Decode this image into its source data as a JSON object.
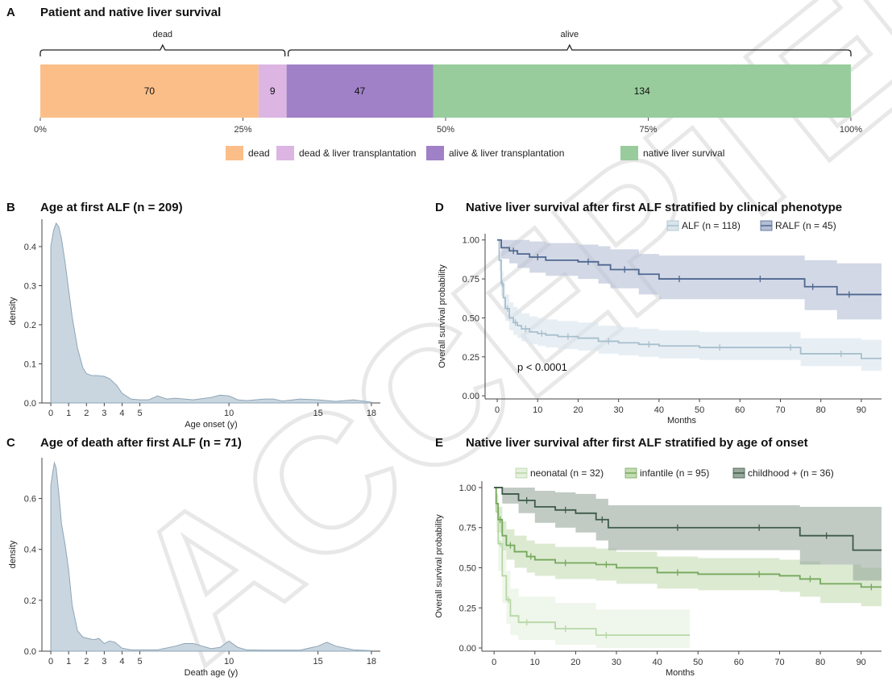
{
  "watermark": "ACCEPTED",
  "panels": [
    {
      "id": "panel-a",
      "letter": "A",
      "title": "Patient and native liver survival"
    },
    {
      "id": "panel-b",
      "letter": "B",
      "title": "Age at first ALF (n = 209)"
    },
    {
      "id": "panel-c",
      "letter": "C",
      "title": "Age of death after first ALF (n = 71)"
    },
    {
      "id": "panel-d",
      "letter": "D",
      "title": "Native liver survival after first ALF stratified by clinical phenotype"
    },
    {
      "id": "panel-e",
      "letter": "E",
      "title": "Native liver survival after first ALF stratified by age of onset"
    }
  ],
  "chart_data": [
    {
      "panel": "A",
      "type": "bar",
      "orientation": "horizontal-stacked-percent",
      "title": "Patient and native liver survival",
      "segments": [
        {
          "name": "dead",
          "value": 70,
          "color": "#fbbe89"
        },
        {
          "name": "dead & liver transplantation",
          "value": 9,
          "color": "#dcb5e3"
        },
        {
          "name": "alive & liver transplantation",
          "value": 47,
          "color": "#a080c6"
        },
        {
          "name": "native liver survival",
          "value": 134,
          "color": "#98cc9c"
        }
      ],
      "brackets": [
        {
          "label": "dead",
          "from": 0,
          "to": 79
        },
        {
          "label": "alive",
          "from": 79,
          "to": 260
        }
      ],
      "ticks": [
        "0%",
        "25%",
        "50%",
        "75%",
        "100%"
      ],
      "tick_values": [
        0,
        25,
        50,
        75,
        100
      ],
      "legend": "bottom"
    },
    {
      "panel": "B",
      "type": "area",
      "title": "Age at first ALF (n = 209)",
      "xlabel": "Age onset (y)",
      "ylabel": "density",
      "xlim": [
        -0.5,
        18.5
      ],
      "ylim": [
        0,
        0.47
      ],
      "x_ticks": [
        0,
        1,
        2,
        3,
        4,
        5,
        10,
        15,
        18
      ],
      "x_tick_labels": [
        "0",
        "1",
        "2",
        "3",
        "4",
        "5",
        "10",
        "15",
        "18"
      ],
      "y_ticks": [
        0,
        0.1,
        0.2,
        0.3,
        0.4
      ],
      "y_tick_labels": [
        "0.0",
        "0.1",
        "0.2",
        "0.3",
        "0.4"
      ],
      "color": "#c9d6e0",
      "line_color": "#8fa5b6",
      "x": [
        0,
        0.15,
        0.3,
        0.45,
        0.6,
        0.8,
        1.0,
        1.2,
        1.5,
        1.8,
        2.0,
        2.3,
        2.6,
        3.0,
        3.3,
        3.7,
        4.0,
        4.5,
        5,
        5.5,
        6,
        6.5,
        7,
        8,
        9,
        9.5,
        10,
        10.5,
        11,
        12,
        12.5,
        13,
        14,
        15,
        16,
        17,
        17.5,
        18
      ],
      "y": [
        0.4,
        0.44,
        0.46,
        0.45,
        0.42,
        0.36,
        0.29,
        0.22,
        0.14,
        0.09,
        0.075,
        0.07,
        0.07,
        0.068,
        0.062,
        0.045,
        0.025,
        0.01,
        0.008,
        0.008,
        0.018,
        0.01,
        0.012,
        0.008,
        0.014,
        0.02,
        0.018,
        0.008,
        0.006,
        0.01,
        0.01,
        0.005,
        0.01,
        0.008,
        0.004,
        0.008,
        0.005,
        0.002
      ]
    },
    {
      "panel": "C",
      "type": "area",
      "title": "Age of death after first ALF (n = 71)",
      "xlabel": "Death age (y)",
      "ylabel": "density",
      "xlim": [
        -0.5,
        18.5
      ],
      "ylim": [
        0,
        0.76
      ],
      "x_ticks": [
        0,
        1,
        2,
        3,
        4,
        5,
        10,
        15,
        18
      ],
      "x_tick_labels": [
        "0",
        "1",
        "2",
        "3",
        "4",
        "5",
        "10",
        "15",
        "18"
      ],
      "y_ticks": [
        0,
        0.2,
        0.4,
        0.6
      ],
      "y_tick_labels": [
        "0.0",
        "0.2",
        "0.4",
        "0.6"
      ],
      "color": "#c9d6e0",
      "line_color": "#8fa5b6",
      "x": [
        0,
        0.1,
        0.2,
        0.3,
        0.45,
        0.6,
        0.8,
        1.0,
        1.2,
        1.5,
        1.8,
        2.1,
        2.4,
        2.7,
        3.0,
        3.3,
        3.6,
        4.0,
        4.5,
        5,
        6,
        7,
        7.5,
        8,
        8.5,
        9,
        9.5,
        10,
        10.5,
        11,
        12,
        13,
        14,
        15,
        15.5,
        16,
        17,
        18
      ],
      "y": [
        0.65,
        0.7,
        0.74,
        0.72,
        0.62,
        0.5,
        0.42,
        0.32,
        0.18,
        0.08,
        0.055,
        0.05,
        0.045,
        0.05,
        0.03,
        0.04,
        0.035,
        0.012,
        0.005,
        0.005,
        0.005,
        0.02,
        0.03,
        0.03,
        0.02,
        0.01,
        0.015,
        0.04,
        0.015,
        0.005,
        0.004,
        0.004,
        0.004,
        0.02,
        0.035,
        0.02,
        0.005,
        0.002
      ]
    },
    {
      "panel": "D",
      "type": "line",
      "subtype": "kaplan-meier",
      "title": "Native liver survival after first ALF stratified by clinical phenotype",
      "xlabel": "Months",
      "ylabel": "Overall survival probability",
      "xlim": [
        -3,
        95
      ],
      "ylim": [
        -0.02,
        1.04
      ],
      "x_ticks": [
        0,
        10,
        20,
        30,
        40,
        50,
        60,
        70,
        80,
        90
      ],
      "y_ticks": [
        0,
        0.25,
        0.5,
        0.75,
        1.0
      ],
      "y_tick_labels": [
        "0.00",
        "0.25",
        "0.50",
        "0.75",
        "1.00"
      ],
      "annotation": "p < 0.0001",
      "legend": "top-right",
      "series": [
        {
          "name": "ALF (n = 118)",
          "color": "#a7bfcd",
          "band": "#d9e5ec",
          "x": [
            0,
            0.5,
            1,
            1.5,
            2,
            3,
            4,
            5,
            6,
            8,
            10,
            12,
            15,
            20,
            25,
            30,
            35,
            40,
            50,
            60,
            70,
            75,
            80,
            90,
            95
          ],
          "y": [
            1.0,
            0.87,
            0.72,
            0.63,
            0.56,
            0.5,
            0.47,
            0.45,
            0.43,
            0.41,
            0.4,
            0.39,
            0.38,
            0.37,
            0.35,
            0.34,
            0.33,
            0.32,
            0.31,
            0.31,
            0.31,
            0.27,
            0.27,
            0.24,
            0.24
          ],
          "upper": [
            1.0,
            0.93,
            0.8,
            0.72,
            0.65,
            0.6,
            0.57,
            0.55,
            0.53,
            0.51,
            0.5,
            0.49,
            0.48,
            0.47,
            0.45,
            0.44,
            0.43,
            0.42,
            0.41,
            0.41,
            0.41,
            0.37,
            0.37,
            0.36,
            0.36
          ],
          "lower": [
            1.0,
            0.8,
            0.64,
            0.55,
            0.48,
            0.42,
            0.39,
            0.37,
            0.35,
            0.33,
            0.32,
            0.31,
            0.3,
            0.29,
            0.27,
            0.26,
            0.25,
            0.24,
            0.23,
            0.23,
            0.23,
            0.19,
            0.19,
            0.16,
            0.16
          ]
        },
        {
          "name": "RALF (n = 45)",
          "color": "#4f6791",
          "band": "#b4bed4",
          "x": [
            0,
            1,
            3,
            5,
            8,
            12,
            20,
            25,
            28,
            35,
            40,
            50,
            60,
            70,
            76,
            80,
            84,
            90,
            95
          ],
          "y": [
            1.0,
            0.95,
            0.93,
            0.91,
            0.89,
            0.87,
            0.86,
            0.84,
            0.81,
            0.78,
            0.75,
            0.75,
            0.75,
            0.75,
            0.7,
            0.7,
            0.65,
            0.65,
            0.65
          ],
          "upper": [
            1.0,
            1.0,
            1.0,
            1.0,
            0.99,
            0.98,
            0.97,
            0.96,
            0.94,
            0.91,
            0.9,
            0.9,
            0.9,
            0.9,
            0.87,
            0.87,
            0.85,
            0.85,
            0.85
          ],
          "lower": [
            1.0,
            0.88,
            0.85,
            0.82,
            0.79,
            0.77,
            0.75,
            0.72,
            0.69,
            0.65,
            0.62,
            0.62,
            0.62,
            0.62,
            0.55,
            0.55,
            0.49,
            0.49,
            0.49
          ]
        }
      ]
    },
    {
      "panel": "E",
      "type": "line",
      "subtype": "kaplan-meier",
      "title": "Native liver survival after first ALF stratified by age of onset",
      "xlabel": "Months",
      "ylabel": "Overall survival probability",
      "xlim": [
        -3,
        95
      ],
      "ylim": [
        -0.02,
        1.04
      ],
      "x_ticks": [
        0,
        10,
        20,
        30,
        40,
        50,
        60,
        70,
        80,
        90
      ],
      "y_ticks": [
        0,
        0.25,
        0.5,
        0.75,
        1.0
      ],
      "y_tick_labels": [
        "0.00",
        "0.25",
        "0.50",
        "0.75",
        "1.00"
      ],
      "legend": "top-right",
      "series": [
        {
          "name": "neonatal (n = 32)",
          "color": "#b7d7a6",
          "band": "#e4f0dd",
          "x": [
            0,
            0.5,
            1,
            2,
            3,
            4,
            6,
            10,
            15,
            20,
            25,
            30,
            48
          ],
          "y": [
            1.0,
            0.85,
            0.65,
            0.45,
            0.3,
            0.2,
            0.16,
            0.16,
            0.12,
            0.12,
            0.08,
            0.08,
            0.08
          ],
          "upper": [
            1.0,
            0.95,
            0.8,
            0.62,
            0.48,
            0.37,
            0.32,
            0.32,
            0.28,
            0.28,
            0.24,
            0.24,
            0.24
          ],
          "lower": [
            1.0,
            0.72,
            0.48,
            0.28,
            0.15,
            0.08,
            0.05,
            0.05,
            0.02,
            0.02,
            0.0,
            0.0,
            0.0
          ]
        },
        {
          "name": "infantile (n = 95)",
          "color": "#75a85b",
          "band": "#c4dcb4",
          "x": [
            0,
            0.5,
            1,
            2,
            3,
            5,
            8,
            10,
            15,
            20,
            25,
            30,
            40,
            50,
            60,
            70,
            75,
            80,
            90,
            95
          ],
          "y": [
            1.0,
            0.9,
            0.8,
            0.7,
            0.64,
            0.6,
            0.57,
            0.55,
            0.53,
            0.53,
            0.52,
            0.5,
            0.47,
            0.46,
            0.46,
            0.45,
            0.43,
            0.4,
            0.38,
            0.38
          ],
          "upper": [
            1.0,
            0.96,
            0.88,
            0.79,
            0.74,
            0.7,
            0.67,
            0.65,
            0.63,
            0.63,
            0.62,
            0.6,
            0.57,
            0.56,
            0.56,
            0.55,
            0.54,
            0.52,
            0.5,
            0.5
          ],
          "lower": [
            1.0,
            0.84,
            0.72,
            0.61,
            0.55,
            0.5,
            0.47,
            0.45,
            0.43,
            0.43,
            0.42,
            0.4,
            0.37,
            0.36,
            0.36,
            0.35,
            0.32,
            0.28,
            0.26,
            0.26
          ]
        },
        {
          "name": "childhood + (n = 36)",
          "color": "#3f5a48",
          "band": "#98a89c",
          "x": [
            0,
            2,
            6,
            10,
            15,
            20,
            25,
            28,
            40,
            50,
            60,
            70,
            75,
            88,
            95
          ],
          "y": [
            1.0,
            0.96,
            0.92,
            0.88,
            0.86,
            0.84,
            0.8,
            0.75,
            0.75,
            0.75,
            0.75,
            0.75,
            0.7,
            0.61,
            0.61
          ],
          "upper": [
            1.0,
            1.0,
            1.0,
            0.98,
            0.97,
            0.96,
            0.93,
            0.89,
            0.89,
            0.89,
            0.89,
            0.89,
            0.88,
            0.88,
            0.88
          ],
          "lower": [
            1.0,
            0.9,
            0.84,
            0.78,
            0.75,
            0.72,
            0.67,
            0.61,
            0.61,
            0.61,
            0.61,
            0.61,
            0.52,
            0.42,
            0.42
          ]
        }
      ]
    }
  ]
}
